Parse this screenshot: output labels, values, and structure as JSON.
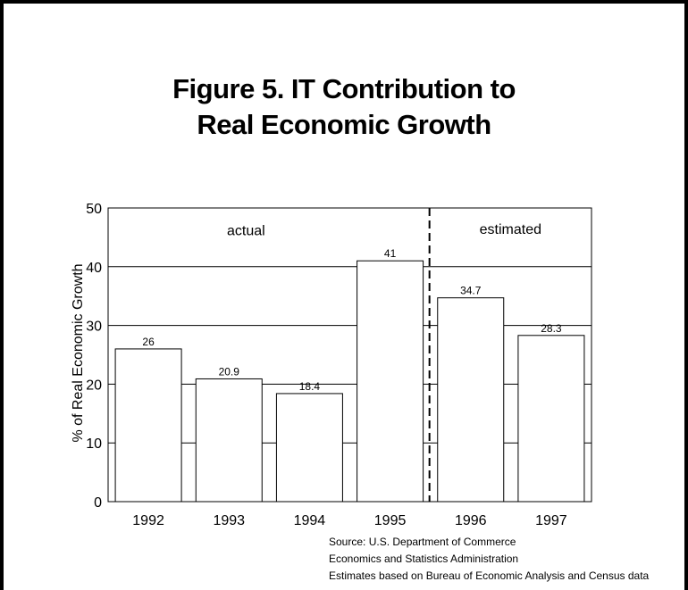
{
  "title": {
    "line1": "Figure 5. IT Contribution to",
    "line2": "Real Economic Growth"
  },
  "chart_data": {
    "type": "bar",
    "title": "Figure 5. IT Contribution to Real Economic Growth",
    "xlabel": "",
    "ylabel": "% of Real Economic Growth",
    "categories": [
      "1992",
      "1993",
      "1994",
      "1995",
      "1996",
      "1997"
    ],
    "values": [
      26,
      20.9,
      18.4,
      41,
      34.7,
      28.3
    ],
    "value_labels": [
      "26",
      "20.9",
      "18.4",
      "41",
      "34.7",
      "28.3"
    ],
    "ylim": [
      0,
      50
    ],
    "yticks": [
      0,
      10,
      20,
      30,
      40,
      50
    ],
    "grid": "horizontal",
    "legend": "none",
    "annotations": [
      {
        "text": "actual"
      },
      {
        "text": "estimated"
      }
    ],
    "divider_after_category": "1995"
  },
  "source": {
    "line1": "Source: U.S. Department of Commerce",
    "line2": "Economics and Statistics Administration",
    "line3": "Estimates based on Bureau of Economic Analysis and Census data"
  }
}
